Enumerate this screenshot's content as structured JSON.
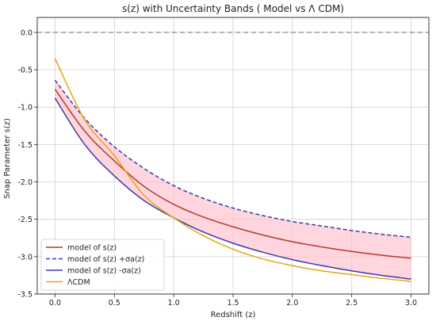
{
  "chart_data": {
    "type": "line",
    "title": "s(z) with Uncertainty Bands ( Model vs Λ CDM)",
    "xlabel": "Redshift (z)",
    "ylabel": "Snap Parameter s(z)",
    "xlim": [
      -0.15,
      3.15
    ],
    "ylim": [
      -3.5,
      0.2
    ],
    "xticks": [
      "0.0",
      "0.5",
      "1.0",
      "1.5",
      "2.0",
      "2.5",
      "3.0"
    ],
    "yticks": [
      "0.0",
      "-0.5",
      "-1.0",
      "-1.5",
      "-2.0",
      "-2.5",
      "-3.0",
      "-3.5"
    ],
    "xtick_values": [
      0,
      0.5,
      1.0,
      1.5,
      2.0,
      2.5,
      3.0
    ],
    "ytick_values": [
      0,
      -0.5,
      -1.0,
      -1.5,
      -2.0,
      -2.5,
      -3.0,
      -3.5
    ],
    "grid": true,
    "legend_position": "lower-left",
    "reference_line": {
      "y": 0.0,
      "style": "dashed",
      "color": "#888888"
    },
    "band": {
      "between": [
        "model of s(z) +σa(z)",
        "model of s(z) -σa(z)"
      ],
      "color": "#ffc0cb"
    },
    "x": [
      0.0,
      0.25,
      0.5,
      0.75,
      1.0,
      1.25,
      1.5,
      1.75,
      2.0,
      2.25,
      2.5,
      2.75,
      3.0
    ],
    "series": [
      {
        "name": "model of s(z)",
        "color": "#b03a2e",
        "style": "solid",
        "values": [
          -0.76,
          -1.32,
          -1.72,
          -2.06,
          -2.3,
          -2.47,
          -2.6,
          -2.71,
          -2.8,
          -2.87,
          -2.93,
          -2.98,
          -3.02
        ]
      },
      {
        "name": "model of s(z) +σa(z)",
        "color": "#3a3aa8",
        "style": "dashed",
        "values": [
          -0.64,
          -1.15,
          -1.53,
          -1.82,
          -2.05,
          -2.22,
          -2.35,
          -2.45,
          -2.53,
          -2.59,
          -2.65,
          -2.7,
          -2.74
        ]
      },
      {
        "name": "model of s(z) -σa(z)",
        "color": "#3a3aa8",
        "style": "solid",
        "values": [
          -0.88,
          -1.5,
          -1.92,
          -2.25,
          -2.48,
          -2.67,
          -2.82,
          -2.94,
          -3.04,
          -3.12,
          -3.19,
          -3.25,
          -3.3
        ]
      },
      {
        "name": "ΛCDM",
        "color": "#e8a317",
        "style": "solid",
        "values": [
          -0.35,
          -1.17,
          -1.65,
          -2.18,
          -2.48,
          -2.72,
          -2.9,
          -3.03,
          -3.12,
          -3.19,
          -3.24,
          -3.29,
          -3.33
        ]
      }
    ]
  }
}
